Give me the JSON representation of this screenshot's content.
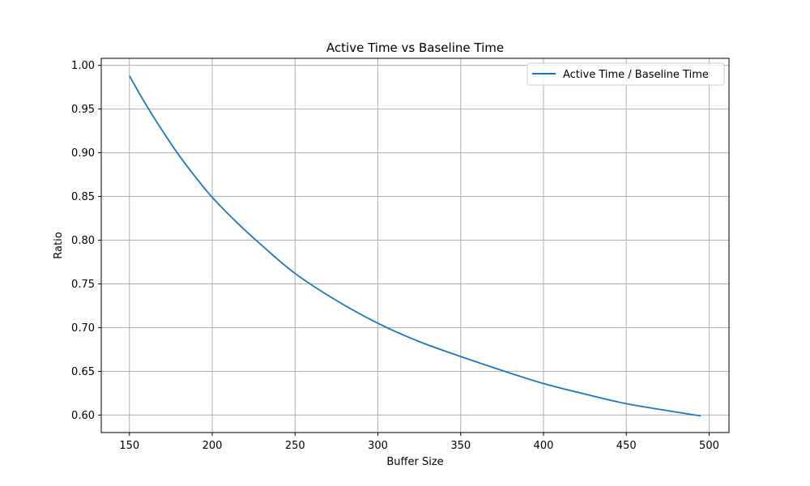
{
  "chart_data": {
    "type": "line",
    "title": "Active Time vs Baseline Time",
    "xlabel": "Buffer Size",
    "ylabel": "Ratio",
    "xlim": [
      133,
      512
    ],
    "ylim": [
      0.58,
      1.008
    ],
    "xticks": [
      150,
      200,
      250,
      300,
      350,
      400,
      450,
      500
    ],
    "xtick_labels": [
      "150",
      "200",
      "250",
      "300",
      "350",
      "400",
      "450",
      "500"
    ],
    "yticks": [
      0.6,
      0.65,
      0.7,
      0.75,
      0.8,
      0.85,
      0.9,
      0.95,
      1.0
    ],
    "ytick_labels": [
      "0.60",
      "0.65",
      "0.70",
      "0.75",
      "0.80",
      "0.85",
      "0.90",
      "0.95",
      "1.00"
    ],
    "grid": true,
    "legend_position": "top-right",
    "series": [
      {
        "name": "Active Time / Baseline Time",
        "color": "#1f77b4",
        "x": [
          150,
          160,
          170,
          180,
          190,
          200,
          215,
          230,
          250,
          275,
          300,
          325,
          350,
          375,
          400,
          425,
          450,
          475,
          495
        ],
        "y": [
          0.988,
          0.955,
          0.925,
          0.897,
          0.872,
          0.849,
          0.82,
          0.794,
          0.762,
          0.731,
          0.705,
          0.684,
          0.667,
          0.651,
          0.636,
          0.624,
          0.613,
          0.605,
          0.599
        ]
      }
    ]
  }
}
